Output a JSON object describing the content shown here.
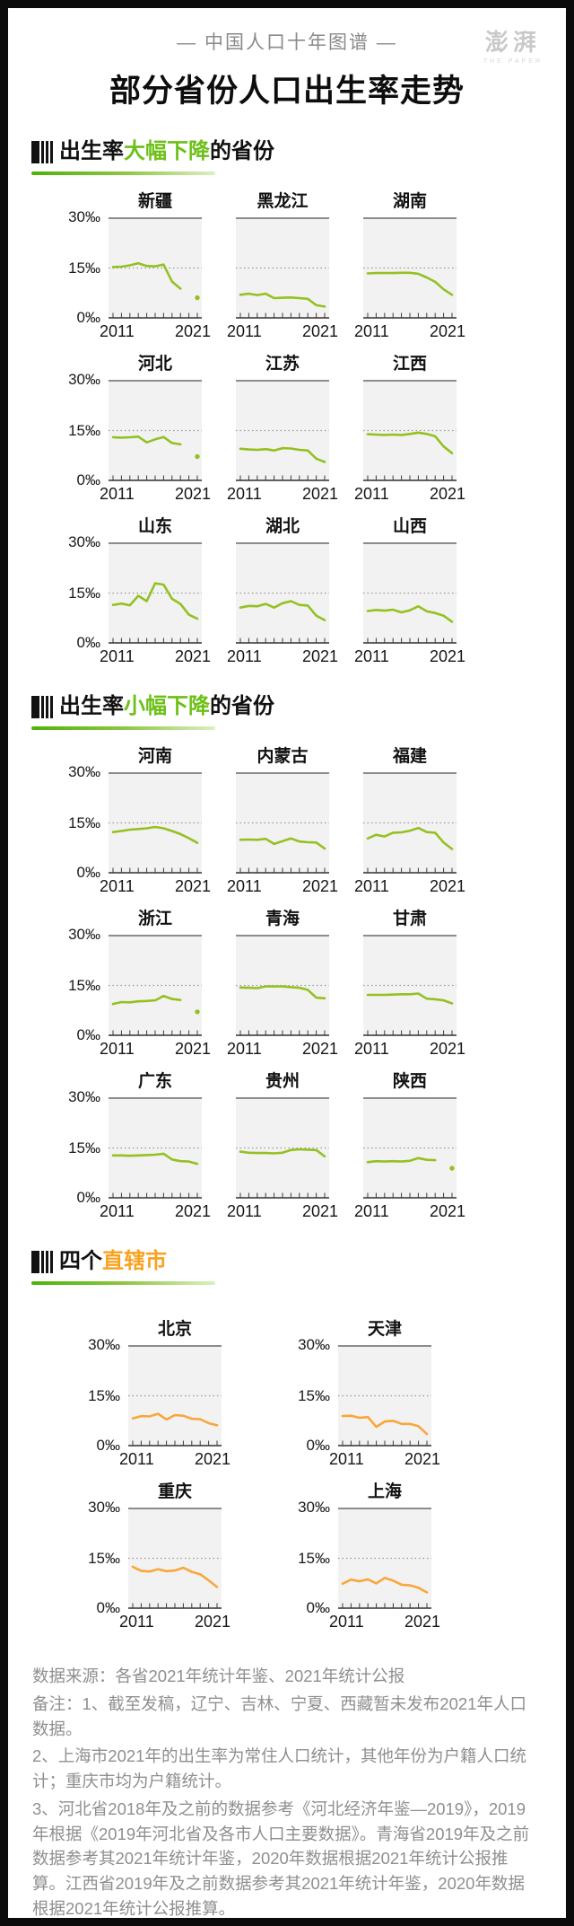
{
  "page": {
    "kicker": "—  中国人口十年图谱  —",
    "title": "部分省份人口出生率走势",
    "logo": {
      "main": "澎湃",
      "sub": "THE PAPER"
    }
  },
  "sections": [
    {
      "prefix": "出生率",
      "highlight": "大幅下降",
      "suffix": "的省份",
      "accent": "#6cc016"
    },
    {
      "prefix": "出生率",
      "highlight": "小幅下降",
      "suffix": "的省份",
      "accent": "#6cc016"
    },
    {
      "prefix": "四个",
      "highlight": "直辖市",
      "suffix": "",
      "accent": "#f7a321"
    }
  ],
  "footer": {
    "source": "数据来源：各省2021年统计年鉴、2021年统计公报",
    "note1": "备注：1、截至发稿，辽宁、吉林、宁夏、西藏暂未发布2021年人口数据。",
    "note2": "2、上海市2021年的出生率为常住人口统计，其他年份为户籍人口统计；重庆市均为户籍统计。",
    "note3": "3、河北省2018年及之前的数据参考《河北经济年鉴—2019》，2019年根据《2019年河北省及各市人口主要数据》。青海省2019年及之前数据参考其2021年统计年鉴，2020年数据根据2021年统计公报推算。江西省2019年及之前数据参考其2021年统计年鉴，2020年数据根据2021年统计公报推算。"
  },
  "chart_data": {
    "type": "line",
    "unit": "‰",
    "x": [
      2011,
      2012,
      2013,
      2014,
      2015,
      2016,
      2017,
      2018,
      2019,
      2020,
      2021
    ],
    "axis": {
      "y_ticks": [
        "30‰",
        "15‰",
        "0‰"
      ],
      "x_start": "2011",
      "x_end": "2021",
      "y_max": 30,
      "gridline": 15,
      "grid": "dotted-15-permille"
    },
    "note": "null = no data published (gap in line); lone 2021 values drawn as isolated dot",
    "groups": [
      {
        "label": "出生率大幅下降的省份",
        "color": "#94c122",
        "per_row": 3,
        "y_labels": "first",
        "charts": [
          {
            "name": "新疆",
            "values": [
              15.3,
              15.4,
              15.8,
              16.4,
              15.6,
              15.5,
              16.0,
              11.0,
              8.9,
              null,
              6.2
            ]
          },
          {
            "name": "黑龙江",
            "values": [
              7.1,
              7.4,
              7.0,
              7.4,
              6.1,
              6.2,
              6.3,
              6.1,
              5.9,
              4.0,
              3.6
            ]
          },
          {
            "name": "湖南",
            "values": [
              13.4,
              13.5,
              13.5,
              13.5,
              13.6,
              13.6,
              13.3,
              12.2,
              10.9,
              8.7,
              7.1
            ]
          },
          {
            "name": "河北",
            "values": [
              13.0,
              12.9,
              13.0,
              13.2,
              11.5,
              12.4,
              13.1,
              11.3,
              10.9,
              null,
              7.3
            ]
          },
          {
            "name": "江苏",
            "values": [
              9.6,
              9.4,
              9.3,
              9.5,
              9.1,
              9.8,
              9.7,
              9.3,
              9.1,
              6.7,
              5.7
            ]
          },
          {
            "name": "江西",
            "values": [
              13.9,
              13.8,
              13.7,
              13.8,
              13.7,
              14.0,
              14.4,
              14.0,
              13.3,
              10.3,
              8.3
            ]
          },
          {
            "name": "山东",
            "values": [
              11.5,
              11.9,
              11.4,
              14.2,
              12.6,
              17.9,
              17.5,
              13.3,
              11.8,
              8.6,
              7.4
            ]
          },
          {
            "name": "湖北",
            "values": [
              10.7,
              11.2,
              11.1,
              11.8,
              10.7,
              12.0,
              12.6,
              11.5,
              11.3,
              8.3,
              7.0
            ]
          },
          {
            "name": "山西",
            "values": [
              9.7,
              10.0,
              9.8,
              10.1,
              9.3,
              9.9,
              11.1,
              9.6,
              9.1,
              8.3,
              6.5
            ]
          }
        ]
      },
      {
        "label": "出生率小幅下降的省份",
        "color": "#94c122",
        "per_row": 3,
        "y_labels": "first",
        "charts": [
          {
            "name": "河南",
            "values": [
              12.3,
              12.6,
              13.0,
              13.2,
              13.4,
              13.8,
              13.4,
              12.6,
              11.7,
              10.5,
              9.1
            ]
          },
          {
            "name": "内蒙古",
            "values": [
              10.0,
              10.1,
              10.0,
              10.3,
              8.8,
              9.6,
              10.4,
              9.5,
              9.3,
              9.2,
              7.4
            ]
          },
          {
            "name": "福建",
            "values": [
              10.4,
              11.5,
              11.0,
              12.1,
              12.2,
              12.7,
              13.5,
              12.3,
              12.1,
              9.2,
              7.3
            ]
          },
          {
            "name": "浙江",
            "values": [
              9.5,
              10.1,
              10.0,
              10.3,
              10.4,
              10.6,
              11.9,
              11.0,
              10.7,
              null,
              7.2
            ]
          },
          {
            "name": "青海",
            "values": [
              14.4,
              14.3,
              14.2,
              14.7,
              14.7,
              14.7,
              14.5,
              14.3,
              13.7,
              11.4,
              11.2
            ]
          },
          {
            "name": "甘肃",
            "values": [
              12.2,
              12.2,
              12.2,
              12.3,
              12.4,
              12.4,
              12.6,
              11.1,
              10.9,
              10.6,
              9.7
            ]
          },
          {
            "name": "广东",
            "values": [
              12.8,
              12.8,
              12.7,
              12.8,
              12.9,
              13.0,
              13.3,
              11.6,
              11.1,
              11.0,
              10.3
            ]
          },
          {
            "name": "贵州",
            "values": [
              13.9,
              13.6,
              13.5,
              13.5,
              13.4,
              13.6,
              14.4,
              14.6,
              14.5,
              14.4,
              12.5
            ]
          },
          {
            "name": "陕西",
            "values": [
              10.8,
              11.1,
              11.0,
              11.1,
              11.0,
              11.2,
              12.0,
              11.5,
              11.4,
              null,
              9.0
            ]
          }
        ]
      },
      {
        "label": "四个直辖市",
        "color": "#f9a63c",
        "per_row": 2,
        "y_labels": "every",
        "charts": [
          {
            "name": "北京",
            "values": [
              8.3,
              9.0,
              8.9,
              9.7,
              8.0,
              9.3,
              9.1,
              8.2,
              8.1,
              6.9,
              6.3
            ]
          },
          {
            "name": "天津",
            "values": [
              9.0,
              9.1,
              8.5,
              8.7,
              5.8,
              7.4,
              7.6,
              6.7,
              6.7,
              6.0,
              3.7
            ]
          },
          {
            "name": "重庆",
            "values": [
              12.5,
              11.3,
              11.1,
              11.8,
              11.2,
              11.4,
              12.2,
              11.0,
              10.3,
              8.5,
              6.5
            ]
          },
          {
            "name": "上海",
            "values": [
              7.5,
              8.7,
              8.2,
              8.8,
              7.6,
              9.2,
              8.4,
              7.2,
              7.0,
              6.3,
              4.9
            ]
          }
        ]
      }
    ]
  }
}
